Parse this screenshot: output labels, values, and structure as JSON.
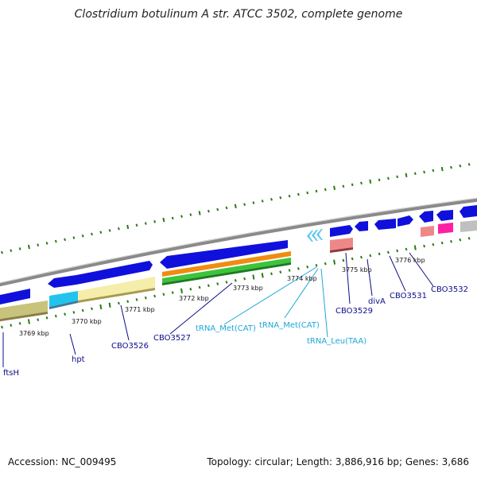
{
  "title": "Clostridium botulinum A str. ATCC 3502, complete genome",
  "footer": {
    "accession": "Accession: NC_009495",
    "stats": "Topology: circular; Length: 3,886,916 bp; Genes: 3,686"
  },
  "ticks": [
    "3769 kbp",
    "3770 kbp",
    "3771 kbp",
    "3772 kbp",
    "3773 kbp",
    "3774 kbp",
    "3775 kbp",
    "3776 kbp"
  ],
  "genes": [
    "ftsH",
    "hpt",
    "CBO3526",
    "CBO3527",
    "CBO3529",
    "divA",
    "CBO3531",
    "CBO3532"
  ],
  "trnas": [
    "tRNA_Met(CAT)",
    "tRNA_Met(CAT)",
    "tRNA_Leu(TAA)"
  ],
  "colors": {
    "backbone": "#8a8a8a",
    "cds": "#1010dd",
    "trna": "#5bc8ee",
    "olive": "#c8c37a",
    "cyan": "#22c4ee",
    "cream": "#f5eeaa",
    "orange": "#f08c10",
    "green": "#3cc43c",
    "salmon": "#ee8888",
    "pink": "#ff1fa0",
    "gray": "#c0c0c0",
    "gc": "#2a7a12",
    "leader": "#0c0c88",
    "trna_leader": "#1ea7d6"
  }
}
